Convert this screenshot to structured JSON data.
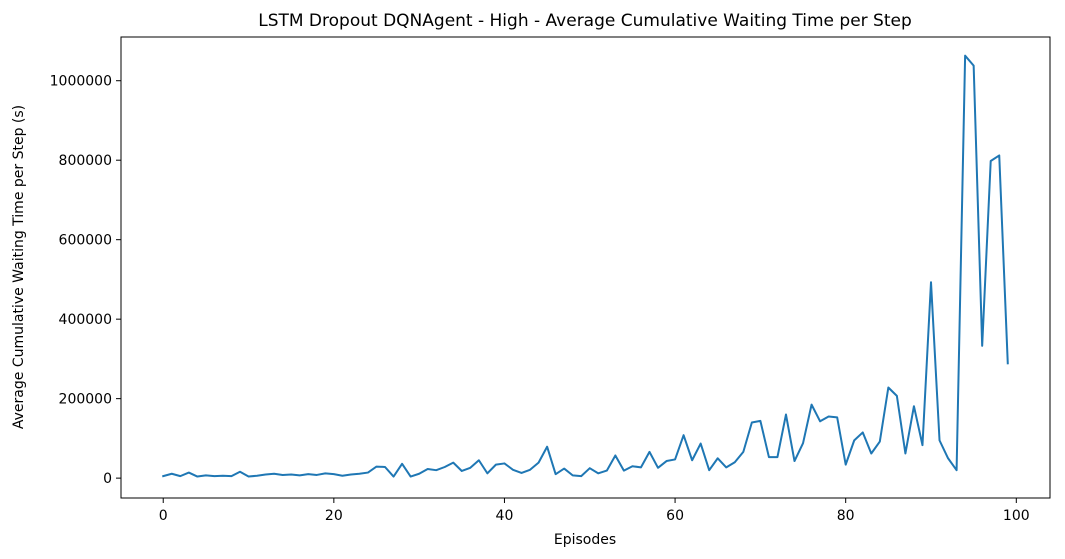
{
  "chart_data": {
    "type": "line",
    "title": "LSTM Dropout DQNAgent - High - Average Cumulative Waiting Time per Step",
    "xlabel": "Episodes",
    "ylabel": "Average Cumulative Waiting Time per Step (s)",
    "xlim": [
      -4.95,
      103.95
    ],
    "ylim": [
      -50000,
      1110000
    ],
    "xticks": [
      0,
      20,
      40,
      60,
      80,
      100
    ],
    "xtick_labels": [
      "0",
      "20",
      "40",
      "60",
      "80",
      "100"
    ],
    "yticks": [
      0,
      200000,
      400000,
      600000,
      800000,
      1000000
    ],
    "ytick_labels": [
      "0",
      "200000",
      "400000",
      "600000",
      "800000",
      "1000000"
    ],
    "grid": false,
    "legend": false,
    "line_color": "#1f77b4",
    "series": [
      {
        "x": [
          0,
          1,
          2,
          3,
          4,
          5,
          6,
          7,
          8,
          9,
          10,
          11,
          12,
          13,
          14,
          15,
          16,
          17,
          18,
          19,
          20,
          21,
          22,
          23,
          24,
          25,
          26,
          27,
          28,
          29,
          30,
          31,
          32,
          33,
          34,
          35,
          36,
          37,
          38,
          39,
          40,
          41,
          42,
          43,
          44,
          45,
          46,
          47,
          48,
          49,
          50,
          51,
          52,
          53,
          54,
          55,
          56,
          57,
          58,
          59,
          60,
          61,
          62,
          63,
          64,
          65,
          66,
          67,
          68,
          69,
          70,
          71,
          72,
          73,
          74,
          75,
          76,
          77,
          78,
          79,
          80,
          81,
          82,
          83,
          84,
          85,
          86,
          87,
          88,
          89,
          90,
          91,
          92,
          93,
          94,
          95,
          96,
          97,
          98,
          99
        ],
        "values": [
          5000,
          11000,
          5000,
          14000,
          4000,
          7000,
          5000,
          6000,
          5000,
          16000,
          4000,
          6000,
          9000,
          11000,
          8000,
          9000,
          7000,
          10000,
          8000,
          12000,
          10000,
          6000,
          9000,
          11000,
          14000,
          29000,
          28000,
          4000,
          36000,
          4000,
          11000,
          23000,
          20000,
          28000,
          39000,
          18000,
          26000,
          45000,
          12000,
          34000,
          37000,
          21000,
          13000,
          21000,
          39000,
          79000,
          10000,
          24000,
          7000,
          5000,
          25000,
          12000,
          19000,
          57000,
          19000,
          30000,
          27000,
          66000,
          26000,
          43000,
          47000,
          108000,
          45000,
          87000,
          20000,
          50000,
          27000,
          40000,
          66000,
          140000,
          144000,
          53000,
          53000,
          160000,
          43000,
          88000,
          185000,
          143000,
          155000,
          153000,
          34000,
          95000,
          115000,
          62000,
          92000,
          228000,
          207000,
          62000,
          181000,
          83000,
          493000,
          95000,
          50000,
          20000,
          1063000,
          1038000,
          333000,
          798000,
          812000,
          289000
        ]
      }
    ]
  }
}
